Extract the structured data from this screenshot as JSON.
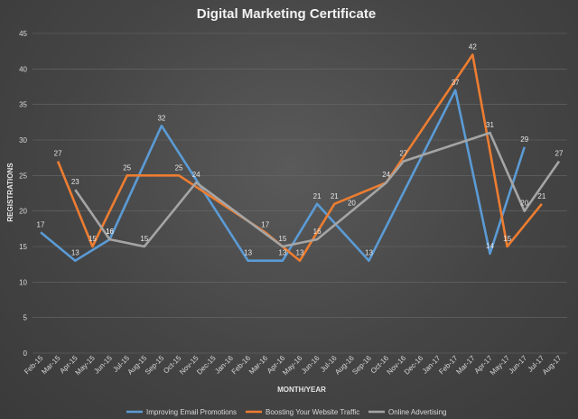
{
  "chart_data": {
    "type": "line",
    "title": "Digital Marketing Certificate",
    "xlabel": "MONTH/YEAR",
    "ylabel": "REGISTRATIONS",
    "ylim": [
      0,
      45
    ],
    "yticks": [
      0,
      5,
      10,
      15,
      20,
      25,
      30,
      35,
      40,
      45
    ],
    "grid": true,
    "legend_position": "bottom",
    "categories": [
      "Feb-15",
      "Mar-15",
      "Apr-15",
      "May-15",
      "Jun-15",
      "Jul-15",
      "Aug-15",
      "Sep-15",
      "Oct-15",
      "Nov-15",
      "Dec-15",
      "Jan-16",
      "Feb-16",
      "Mar-16",
      "Apr-16",
      "May-16",
      "Jun-16",
      "Jul-16",
      "Aug-16",
      "Sep-16",
      "Oct-16",
      "Nov-16",
      "Dec-16",
      "Jan-17",
      "Feb-17",
      "Mar-17",
      "Apr-17",
      "May-17",
      "Jun-17",
      "Jul-17",
      "Aug-17"
    ],
    "series": [
      {
        "name": "Improving Email Promotions",
        "color": "#5b9bd5",
        "values": [
          17,
          null,
          13,
          null,
          16,
          null,
          null,
          32,
          null,
          null,
          null,
          null,
          13,
          null,
          13,
          null,
          21,
          null,
          null,
          13,
          null,
          null,
          null,
          null,
          37,
          null,
          14,
          null,
          29,
          null,
          null
        ],
        "labeled": [
          0,
          2,
          4,
          7,
          12,
          14,
          16,
          19,
          24,
          26,
          28
        ]
      },
      {
        "name": "Boosting Your Website Traffic",
        "color": "#ed7d31",
        "values": [
          null,
          27,
          null,
          15,
          null,
          25,
          null,
          null,
          25,
          null,
          null,
          null,
          null,
          17,
          null,
          13,
          null,
          21,
          null,
          null,
          24,
          null,
          null,
          null,
          null,
          42,
          null,
          15,
          null,
          21,
          null
        ],
        "labeled": [
          1,
          3,
          5,
          8,
          13,
          15,
          17,
          25,
          27,
          29
        ]
      },
      {
        "name": "Online Advertising",
        "color": "#a5a5a5",
        "values": [
          null,
          null,
          23,
          null,
          16,
          null,
          15,
          null,
          null,
          24,
          null,
          null,
          null,
          null,
          15,
          null,
          16,
          null,
          20,
          null,
          24,
          27,
          null,
          null,
          null,
          null,
          31,
          null,
          20,
          null,
          27
        ],
        "labeled": [
          2,
          4,
          6,
          9,
          14,
          16,
          18,
          20,
          21,
          26,
          28,
          30
        ]
      }
    ]
  }
}
